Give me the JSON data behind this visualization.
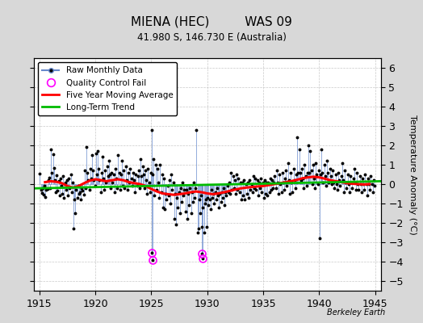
{
  "title": "MIENA (HEC)         WAS 09",
  "subtitle": "41.980 S, 146.730 E (Australia)",
  "ylabel": "Temperature Anomaly (°C)",
  "xlabel_years": [
    1915,
    1920,
    1925,
    1930,
    1935,
    1940,
    1945
  ],
  "xlim": [
    1914.5,
    1945.5
  ],
  "ylim": [
    -5.5,
    6.5
  ],
  "yticks": [
    -5,
    -4,
    -3,
    -2,
    -1,
    0,
    1,
    2,
    3,
    4,
    5,
    6
  ],
  "background_color": "#d8d8d8",
  "plot_bg_color": "#ffffff",
  "raw_line_color": "#6688cc",
  "raw_marker_color": "#000000",
  "moving_avg_color": "#ff0000",
  "trend_color": "#00bb00",
  "qc_fail_color": "#ff00ff",
  "watermark": "Berkeley Earth",
  "raw_data": [
    [
      1915.04,
      0.55
    ],
    [
      1915.12,
      -0.3
    ],
    [
      1915.21,
      -0.45
    ],
    [
      1915.29,
      -0.2
    ],
    [
      1915.37,
      -0.55
    ],
    [
      1915.46,
      -0.1
    ],
    [
      1915.54,
      -0.65
    ],
    [
      1915.62,
      -0.3
    ],
    [
      1915.71,
      -0.25
    ],
    [
      1915.79,
      0.2
    ],
    [
      1915.87,
      0.35
    ],
    [
      1915.96,
      -0.2
    ],
    [
      1916.04,
      1.8
    ],
    [
      1916.12,
      0.6
    ],
    [
      1916.21,
      1.55
    ],
    [
      1916.29,
      0.85
    ],
    [
      1916.37,
      0.2
    ],
    [
      1916.46,
      -0.4
    ],
    [
      1916.54,
      0.45
    ],
    [
      1916.62,
      -0.35
    ],
    [
      1916.71,
      0.15
    ],
    [
      1916.79,
      -0.6
    ],
    [
      1916.87,
      0.3
    ],
    [
      1916.96,
      -0.1
    ],
    [
      1917.04,
      -0.5
    ],
    [
      1917.12,
      0.4
    ],
    [
      1917.21,
      -0.7
    ],
    [
      1917.29,
      0.1
    ],
    [
      1917.37,
      -0.3
    ],
    [
      1917.46,
      0.2
    ],
    [
      1917.54,
      -0.6
    ],
    [
      1917.62,
      0.3
    ],
    [
      1917.71,
      -0.2
    ],
    [
      1917.79,
      0.5
    ],
    [
      1917.87,
      -0.4
    ],
    [
      1917.96,
      0.1
    ],
    [
      1918.04,
      -2.3
    ],
    [
      1918.12,
      -0.8
    ],
    [
      1918.21,
      -1.5
    ],
    [
      1918.29,
      -0.3
    ],
    [
      1918.37,
      -0.7
    ],
    [
      1918.46,
      -0.1
    ],
    [
      1918.54,
      -0.5
    ],
    [
      1918.62,
      -0.4
    ],
    [
      1918.71,
      -0.8
    ],
    [
      1918.79,
      -0.2
    ],
    [
      1918.87,
      -0.35
    ],
    [
      1918.96,
      -0.55
    ],
    [
      1919.04,
      0.7
    ],
    [
      1919.12,
      -0.2
    ],
    [
      1919.21,
      1.9
    ],
    [
      1919.29,
      0.6
    ],
    [
      1919.37,
      0.2
    ],
    [
      1919.46,
      -0.3
    ],
    [
      1919.54,
      0.8
    ],
    [
      1919.62,
      0.3
    ],
    [
      1919.71,
      1.5
    ],
    [
      1919.79,
      0.7
    ],
    [
      1919.87,
      0.2
    ],
    [
      1919.96,
      -0.1
    ],
    [
      1920.04,
      1.6
    ],
    [
      1920.12,
      0.5
    ],
    [
      1920.21,
      1.7
    ],
    [
      1920.29,
      0.8
    ],
    [
      1920.37,
      0.2
    ],
    [
      1920.46,
      -0.4
    ],
    [
      1920.54,
      0.6
    ],
    [
      1920.62,
      1.4
    ],
    [
      1920.71,
      0.3
    ],
    [
      1920.79,
      -0.3
    ],
    [
      1920.87,
      0.7
    ],
    [
      1920.96,
      0.1
    ],
    [
      1921.04,
      0.9
    ],
    [
      1921.12,
      0.4
    ],
    [
      1921.21,
      1.2
    ],
    [
      1921.29,
      0.5
    ],
    [
      1921.37,
      -0.2
    ],
    [
      1921.46,
      0.6
    ],
    [
      1921.54,
      0.1
    ],
    [
      1921.62,
      0.5
    ],
    [
      1921.71,
      -0.4
    ],
    [
      1921.79,
      0.8
    ],
    [
      1921.87,
      0.3
    ],
    [
      1921.96,
      -0.2
    ],
    [
      1922.04,
      1.5
    ],
    [
      1922.12,
      0.6
    ],
    [
      1922.21,
      -0.3
    ],
    [
      1922.29,
      0.5
    ],
    [
      1922.37,
      1.2
    ],
    [
      1922.46,
      -0.1
    ],
    [
      1922.54,
      0.7
    ],
    [
      1922.62,
      -0.2
    ],
    [
      1922.71,
      0.9
    ],
    [
      1922.79,
      0.2
    ],
    [
      1922.87,
      -0.3
    ],
    [
      1922.96,
      0.6
    ],
    [
      1923.04,
      0.1
    ],
    [
      1923.12,
      0.8
    ],
    [
      1923.21,
      0.3
    ],
    [
      1923.29,
      -0.1
    ],
    [
      1923.37,
      0.6
    ],
    [
      1923.46,
      0.2
    ],
    [
      1923.54,
      -0.4
    ],
    [
      1923.62,
      0.5
    ],
    [
      1923.71,
      -0.1
    ],
    [
      1923.79,
      0.4
    ],
    [
      1923.87,
      0.7
    ],
    [
      1923.96,
      -0.2
    ],
    [
      1924.04,
      1.3
    ],
    [
      1924.12,
      0.4
    ],
    [
      1924.21,
      0.9
    ],
    [
      1924.29,
      0.5
    ],
    [
      1924.37,
      -0.2
    ],
    [
      1924.46,
      0.7
    ],
    [
      1924.54,
      0.2
    ],
    [
      1924.62,
      -0.5
    ],
    [
      1924.71,
      0.8
    ],
    [
      1924.79,
      0.1
    ],
    [
      1924.87,
      -0.4
    ],
    [
      1924.96,
      0.6
    ],
    [
      1925.04,
      2.8
    ],
    [
      1925.12,
      0.5
    ],
    [
      1925.21,
      1.3
    ],
    [
      1925.29,
      -0.6
    ],
    [
      1925.37,
      1.0
    ],
    [
      1925.46,
      -0.3
    ],
    [
      1925.54,
      0.8
    ],
    [
      1925.62,
      0.1
    ],
    [
      1925.71,
      -0.7
    ],
    [
      1925.79,
      1.0
    ],
    [
      1925.87,
      -0.4
    ],
    [
      1925.96,
      0.5
    ],
    [
      1926.04,
      -1.2
    ],
    [
      1926.12,
      0.3
    ],
    [
      1926.21,
      -1.3
    ],
    [
      1926.29,
      -0.5
    ],
    [
      1926.37,
      -0.8
    ],
    [
      1926.46,
      -0.1
    ],
    [
      1926.54,
      -0.6
    ],
    [
      1926.62,
      0.2
    ],
    [
      1926.71,
      -1.0
    ],
    [
      1926.79,
      0.5
    ],
    [
      1926.87,
      -0.3
    ],
    [
      1926.96,
      0.1
    ],
    [
      1927.04,
      -1.8
    ],
    [
      1927.12,
      -0.5
    ],
    [
      1927.21,
      -2.1
    ],
    [
      1927.29,
      -0.7
    ],
    [
      1927.37,
      -1.2
    ],
    [
      1927.46,
      -0.4
    ],
    [
      1927.54,
      -1.5
    ],
    [
      1927.62,
      -0.2
    ],
    [
      1927.71,
      -0.9
    ],
    [
      1927.79,
      0.1
    ],
    [
      1927.87,
      -0.6
    ],
    [
      1927.96,
      -0.3
    ],
    [
      1928.04,
      -1.4
    ],
    [
      1928.12,
      -0.3
    ],
    [
      1928.21,
      -1.8
    ],
    [
      1928.29,
      -0.5
    ],
    [
      1928.37,
      -1.1
    ],
    [
      1928.46,
      -0.2
    ],
    [
      1928.54,
      -1.5
    ],
    [
      1928.62,
      -0.4
    ],
    [
      1928.71,
      -0.9
    ],
    [
      1928.79,
      0.1
    ],
    [
      1928.87,
      -0.7
    ],
    [
      1928.96,
      -0.2
    ],
    [
      1929.04,
      2.8
    ],
    [
      1929.12,
      -2.5
    ],
    [
      1929.21,
      -2.3
    ],
    [
      1929.29,
      -0.8
    ],
    [
      1929.37,
      -1.5
    ],
    [
      1929.46,
      -0.6
    ],
    [
      1929.54,
      -2.2
    ],
    [
      1929.62,
      -1.2
    ],
    [
      1929.71,
      -2.5
    ],
    [
      1929.79,
      -1.0
    ],
    [
      1929.87,
      -0.8
    ],
    [
      1929.96,
      -2.2
    ],
    [
      1930.04,
      -0.7
    ],
    [
      1930.12,
      -1.1
    ],
    [
      1930.21,
      -0.8
    ],
    [
      1930.29,
      -1.3
    ],
    [
      1930.37,
      -0.3
    ],
    [
      1930.46,
      -0.7
    ],
    [
      1930.54,
      -0.5
    ],
    [
      1930.62,
      -1.0
    ],
    [
      1930.71,
      -0.4
    ],
    [
      1930.79,
      -0.8
    ],
    [
      1930.87,
      -0.2
    ],
    [
      1930.96,
      -0.6
    ],
    [
      1931.04,
      -1.2
    ],
    [
      1931.12,
      -0.5
    ],
    [
      1931.21,
      -0.9
    ],
    [
      1931.29,
      -0.4
    ],
    [
      1931.37,
      -0.7
    ],
    [
      1931.46,
      -0.2
    ],
    [
      1931.54,
      -1.1
    ],
    [
      1931.62,
      -0.4
    ],
    [
      1931.71,
      -0.6
    ],
    [
      1931.79,
      -0.1
    ],
    [
      1931.87,
      -0.4
    ],
    [
      1931.96,
      0.1
    ],
    [
      1932.04,
      -0.5
    ],
    [
      1932.12,
      0.6
    ],
    [
      1932.21,
      -0.3
    ],
    [
      1932.29,
      0.4
    ],
    [
      1932.37,
      -0.2
    ],
    [
      1932.46,
      0.2
    ],
    [
      1932.54,
      -0.5
    ],
    [
      1932.62,
      0.5
    ],
    [
      1932.71,
      -0.3
    ],
    [
      1932.79,
      0.3
    ],
    [
      1932.87,
      -0.4
    ],
    [
      1932.96,
      0.1
    ],
    [
      1933.04,
      -0.8
    ],
    [
      1933.12,
      0.1
    ],
    [
      1933.21,
      -0.6
    ],
    [
      1933.29,
      0.2
    ],
    [
      1933.37,
      -0.8
    ],
    [
      1933.46,
      0.0
    ],
    [
      1933.54,
      -0.5
    ],
    [
      1933.62,
      0.1
    ],
    [
      1933.71,
      -0.7
    ],
    [
      1933.79,
      0.2
    ],
    [
      1933.87,
      -0.3
    ],
    [
      1933.96,
      0.0
    ],
    [
      1934.04,
      -0.4
    ],
    [
      1934.12,
      0.4
    ],
    [
      1934.21,
      -0.2
    ],
    [
      1934.29,
      0.3
    ],
    [
      1934.37,
      -0.3
    ],
    [
      1934.46,
      0.2
    ],
    [
      1934.54,
      -0.6
    ],
    [
      1934.62,
      0.1
    ],
    [
      1934.71,
      -0.2
    ],
    [
      1934.79,
      0.3
    ],
    [
      1934.87,
      -0.4
    ],
    [
      1934.96,
      0.1
    ],
    [
      1935.04,
      -0.7
    ],
    [
      1935.12,
      0.2
    ],
    [
      1935.21,
      -0.5
    ],
    [
      1935.29,
      0.1
    ],
    [
      1935.37,
      -0.6
    ],
    [
      1935.46,
      0.1
    ],
    [
      1935.54,
      -0.4
    ],
    [
      1935.62,
      0.3
    ],
    [
      1935.71,
      -0.3
    ],
    [
      1935.79,
      0.2
    ],
    [
      1935.87,
      -0.2
    ],
    [
      1935.96,
      0.1
    ],
    [
      1936.04,
      0.4
    ],
    [
      1936.12,
      -0.2
    ],
    [
      1936.21,
      0.7
    ],
    [
      1936.29,
      0.1
    ],
    [
      1936.37,
      -0.5
    ],
    [
      1936.46,
      0.5
    ],
    [
      1936.54,
      0.0
    ],
    [
      1936.62,
      -0.4
    ],
    [
      1936.71,
      0.6
    ],
    [
      1936.79,
      0.1
    ],
    [
      1936.87,
      -0.3
    ],
    [
      1936.96,
      0.3
    ],
    [
      1937.04,
      0.7
    ],
    [
      1937.12,
      -0.1
    ],
    [
      1937.21,
      1.1
    ],
    [
      1937.29,
      0.2
    ],
    [
      1937.37,
      -0.5
    ],
    [
      1937.46,
      0.6
    ],
    [
      1937.54,
      0.1
    ],
    [
      1937.62,
      -0.4
    ],
    [
      1937.71,
      0.8
    ],
    [
      1937.79,
      0.2
    ],
    [
      1937.87,
      -0.2
    ],
    [
      1937.96,
      0.5
    ],
    [
      1938.04,
      2.4
    ],
    [
      1938.12,
      0.6
    ],
    [
      1938.21,
      1.8
    ],
    [
      1938.29,
      0.6
    ],
    [
      1938.37,
      0.2
    ],
    [
      1938.46,
      0.8
    ],
    [
      1938.54,
      0.3
    ],
    [
      1938.62,
      -0.2
    ],
    [
      1938.71,
      1.0
    ],
    [
      1938.79,
      0.4
    ],
    [
      1938.87,
      -0.1
    ],
    [
      1938.96,
      0.6
    ],
    [
      1939.04,
      2.0
    ],
    [
      1939.12,
      0.6
    ],
    [
      1939.21,
      1.7
    ],
    [
      1939.29,
      0.7
    ],
    [
      1939.37,
      0.0
    ],
    [
      1939.46,
      1.0
    ],
    [
      1939.54,
      0.3
    ],
    [
      1939.62,
      -0.2
    ],
    [
      1939.71,
      1.1
    ],
    [
      1939.79,
      0.5
    ],
    [
      1939.87,
      0.0
    ],
    [
      1939.96,
      0.7
    ],
    [
      1940.04,
      -2.8
    ],
    [
      1940.12,
      0.5
    ],
    [
      1940.21,
      1.8
    ],
    [
      1940.29,
      0.6
    ],
    [
      1940.37,
      0.1
    ],
    [
      1940.46,
      1.0
    ],
    [
      1940.54,
      0.4
    ],
    [
      1940.62,
      -0.1
    ],
    [
      1940.71,
      1.2
    ],
    [
      1940.79,
      0.6
    ],
    [
      1940.87,
      0.1
    ],
    [
      1940.96,
      0.8
    ],
    [
      1941.04,
      0.4
    ],
    [
      1941.12,
      0.0
    ],
    [
      1941.21,
      0.7
    ],
    [
      1941.29,
      0.1
    ],
    [
      1941.37,
      -0.2
    ],
    [
      1941.46,
      0.5
    ],
    [
      1941.54,
      0.0
    ],
    [
      1941.62,
      -0.3
    ],
    [
      1941.71,
      0.6
    ],
    [
      1941.79,
      0.2
    ],
    [
      1941.87,
      -0.1
    ],
    [
      1941.96,
      0.4
    ],
    [
      1942.04,
      1.1
    ],
    [
      1942.12,
      0.2
    ],
    [
      1942.21,
      -0.4
    ],
    [
      1942.29,
      0.7
    ],
    [
      1942.37,
      0.1
    ],
    [
      1942.46,
      -0.2
    ],
    [
      1942.54,
      0.5
    ],
    [
      1942.62,
      0.0
    ],
    [
      1942.71,
      -0.4
    ],
    [
      1942.79,
      0.4
    ],
    [
      1942.87,
      0.1
    ],
    [
      1942.96,
      -0.2
    ],
    [
      1943.04,
      0.3
    ],
    [
      1943.12,
      0.8
    ],
    [
      1943.21,
      0.1
    ],
    [
      1943.29,
      -0.3
    ],
    [
      1943.37,
      0.6
    ],
    [
      1943.46,
      0.0
    ],
    [
      1943.54,
      -0.3
    ],
    [
      1943.62,
      0.4
    ],
    [
      1943.71,
      0.0
    ],
    [
      1943.79,
      -0.4
    ],
    [
      1943.87,
      0.3
    ],
    [
      1943.96,
      0.0
    ],
    [
      1944.04,
      -0.3
    ],
    [
      1944.12,
      0.5
    ],
    [
      1944.21,
      0.0
    ],
    [
      1944.29,
      -0.6
    ],
    [
      1944.37,
      0.3
    ],
    [
      1944.46,
      0.0
    ],
    [
      1944.54,
      -0.3
    ],
    [
      1944.62,
      0.4
    ],
    [
      1944.71,
      0.0
    ],
    [
      1944.79,
      -0.4
    ],
    [
      1944.87,
      0.2
    ],
    [
      1944.96,
      -0.1
    ]
  ],
  "qc_fail_points": [
    [
      1925.04,
      -3.55
    ],
    [
      1925.12,
      -3.9
    ],
    [
      1929.54,
      -3.6
    ],
    [
      1929.62,
      -3.85
    ]
  ],
  "moving_avg": [
    [
      1915.5,
      0.1
    ],
    [
      1916.0,
      0.15
    ],
    [
      1916.5,
      0.12
    ],
    [
      1917.0,
      0.05
    ],
    [
      1917.5,
      -0.1
    ],
    [
      1918.0,
      -0.18
    ],
    [
      1918.5,
      -0.1
    ],
    [
      1919.0,
      0.05
    ],
    [
      1919.5,
      0.18
    ],
    [
      1920.0,
      0.25
    ],
    [
      1920.5,
      0.2
    ],
    [
      1921.0,
      0.15
    ],
    [
      1921.5,
      0.2
    ],
    [
      1922.0,
      0.25
    ],
    [
      1922.5,
      0.2
    ],
    [
      1923.0,
      0.1
    ],
    [
      1923.5,
      0.05
    ],
    [
      1924.0,
      0.0
    ],
    [
      1924.5,
      -0.1
    ],
    [
      1925.0,
      -0.25
    ],
    [
      1925.5,
      -0.38
    ],
    [
      1926.0,
      -0.48
    ],
    [
      1926.5,
      -0.52
    ],
    [
      1927.0,
      -0.55
    ],
    [
      1927.5,
      -0.52
    ],
    [
      1928.0,
      -0.48
    ],
    [
      1928.5,
      -0.42
    ],
    [
      1929.0,
      -0.38
    ],
    [
      1929.5,
      -0.42
    ],
    [
      1930.0,
      -0.48
    ],
    [
      1930.5,
      -0.52
    ],
    [
      1931.0,
      -0.48
    ],
    [
      1931.5,
      -0.42
    ],
    [
      1932.0,
      -0.35
    ],
    [
      1932.5,
      -0.28
    ],
    [
      1933.0,
      -0.22
    ],
    [
      1933.5,
      -0.18
    ],
    [
      1934.0,
      -0.15
    ],
    [
      1934.5,
      -0.12
    ],
    [
      1935.0,
      -0.1
    ],
    [
      1935.5,
      -0.05
    ],
    [
      1936.0,
      0.0
    ],
    [
      1936.5,
      0.05
    ],
    [
      1937.0,
      0.1
    ],
    [
      1937.5,
      0.15
    ],
    [
      1938.0,
      0.22
    ],
    [
      1938.5,
      0.3
    ],
    [
      1939.0,
      0.35
    ],
    [
      1939.5,
      0.38
    ],
    [
      1940.0,
      0.35
    ],
    [
      1940.5,
      0.28
    ],
    [
      1941.0,
      0.2
    ],
    [
      1941.5,
      0.15
    ],
    [
      1942.0,
      0.1
    ],
    [
      1942.5,
      0.05
    ],
    [
      1943.0,
      0.02
    ],
    [
      1943.5,
      0.0
    ],
    [
      1944.0,
      -0.02
    ],
    [
      1944.5,
      0.0
    ]
  ],
  "trend_x": [
    1914.5,
    1945.5
  ],
  "trend_y": [
    -0.22,
    0.15
  ]
}
